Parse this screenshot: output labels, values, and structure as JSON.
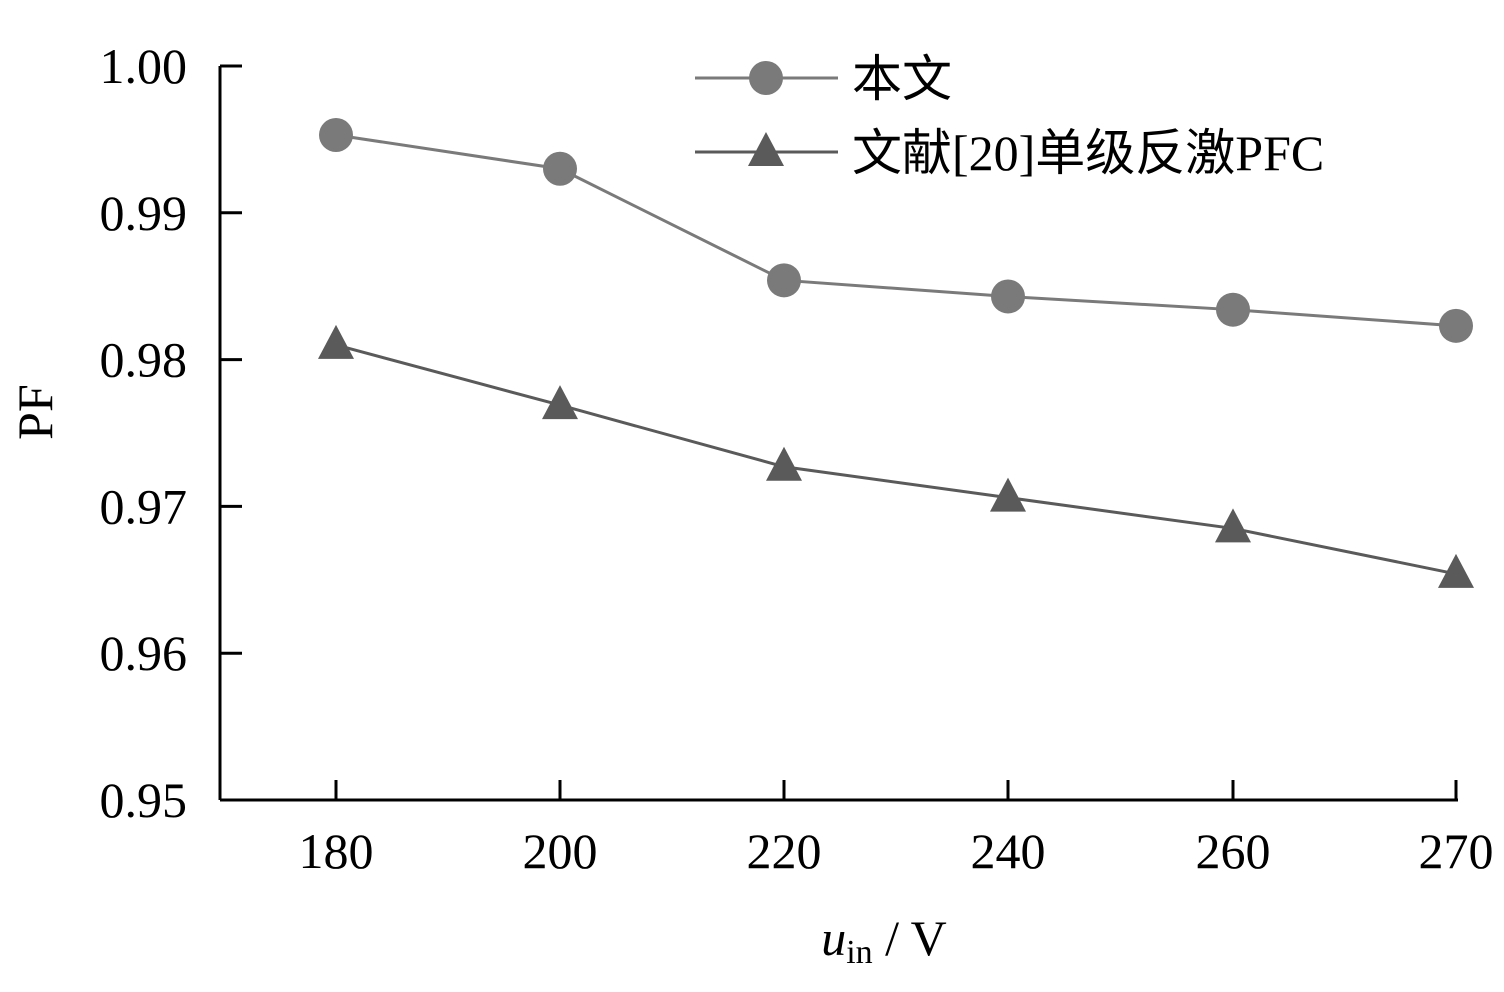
{
  "chart_data": {
    "type": "line",
    "categories": [
      "180",
      "200",
      "220",
      "240",
      "260",
      "270"
    ],
    "series": [
      {
        "name": "本文",
        "marker": "circle",
        "color": "#7a7a7a",
        "values": [
          0.9953,
          0.993,
          0.9854,
          0.9843,
          0.9834,
          0.9823
        ]
      },
      {
        "name": "文献[20]单级反激PFC",
        "marker": "triangle",
        "color": "#5a5a5a",
        "values": [
          0.981,
          0.9769,
          0.9727,
          0.9706,
          0.9685,
          0.9654
        ]
      }
    ],
    "ylim": [
      0.95,
      1.0
    ],
    "yticks": [
      "0.95",
      "0.96",
      "0.97",
      "0.98",
      "0.99",
      "1.00"
    ],
    "ylabel": "PF",
    "xlabel": {
      "var": "u",
      "sub": "in",
      "unit": " / V"
    },
    "legend_position": "top-right",
    "grid": false
  }
}
